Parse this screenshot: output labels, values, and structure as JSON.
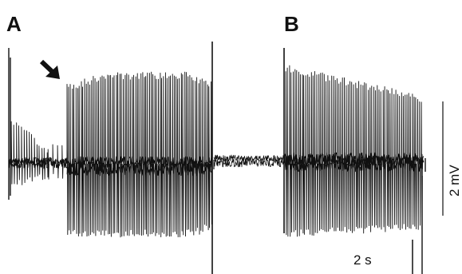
{
  "panels": [
    {
      "label": "A"
    },
    {
      "label": "B"
    }
  ],
  "scale_bars": {
    "time_label": "2 s",
    "voltage_label": "2 mV"
  },
  "colors": {
    "trace": "#111111",
    "background": "#ffffff"
  },
  "annotation": {
    "icon": "arrow-down-right-icon"
  }
}
